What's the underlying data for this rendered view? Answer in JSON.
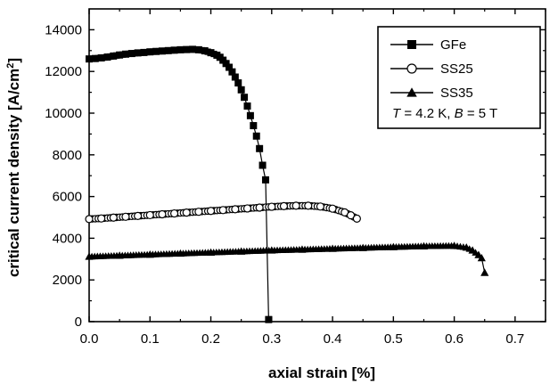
{
  "chart_data": {
    "type": "scatter",
    "xlabel": "axial strain [%]",
    "ylabel": "critical current density [A/cm",
    "ylabel_sup": "2",
    "ylabel_end": "]",
    "xlim": [
      0.0,
      0.75
    ],
    "ylim": [
      0,
      15000
    ],
    "x_ticks": [
      0.0,
      0.1,
      0.2,
      0.3,
      0.4,
      0.5,
      0.6,
      0.7
    ],
    "x_tick_labels": [
      "0.0",
      "0.1",
      "0.2",
      "0.3",
      "0.4",
      "0.5",
      "0.6",
      "0.7"
    ],
    "y_ticks": [
      0,
      2000,
      4000,
      6000,
      8000,
      10000,
      12000,
      14000
    ],
    "y_tick_labels": [
      "0",
      "2000",
      "4000",
      "6000",
      "8000",
      "10000",
      "12000",
      "14000"
    ],
    "grid": false,
    "legend_position": "top-right",
    "legend_condition": {
      "T_sym": "T",
      "T_text": " = 4.2 K, ",
      "B_sym": "B",
      "B_text": " = 5 T"
    },
    "series": [
      {
        "name": "GFe",
        "marker": "square-filled",
        "x": [
          0.0,
          0.01,
          0.02,
          0.03,
          0.04,
          0.05,
          0.06,
          0.07,
          0.08,
          0.09,
          0.1,
          0.11,
          0.12,
          0.13,
          0.14,
          0.15,
          0.16,
          0.17,
          0.18,
          0.19,
          0.2,
          0.21,
          0.215,
          0.22,
          0.225,
          0.23,
          0.235,
          0.24,
          0.245,
          0.25,
          0.255,
          0.26,
          0.265,
          0.27,
          0.275,
          0.28,
          0.285,
          0.29,
          0.295
        ],
        "y": [
          12600,
          12620,
          12650,
          12690,
          12740,
          12790,
          12830,
          12860,
          12890,
          12910,
          12940,
          12960,
          12980,
          13000,
          13020,
          13040,
          13050,
          13060,
          13040,
          12990,
          12900,
          12780,
          12680,
          12540,
          12380,
          12200,
          11980,
          11730,
          11450,
          11120,
          10760,
          10340,
          9880,
          9400,
          8900,
          8300,
          7500,
          6800,
          100
        ]
      },
      {
        "name": "SS25",
        "marker": "circle-open",
        "x": [
          0.0,
          0.02,
          0.04,
          0.06,
          0.08,
          0.1,
          0.12,
          0.14,
          0.16,
          0.18,
          0.2,
          0.22,
          0.24,
          0.26,
          0.28,
          0.3,
          0.32,
          0.34,
          0.36,
          0.38,
          0.4,
          0.42,
          0.43,
          0.44
        ],
        "y": [
          4920,
          4950,
          4990,
          5030,
          5070,
          5110,
          5150,
          5190,
          5230,
          5270,
          5310,
          5350,
          5390,
          5430,
          5470,
          5510,
          5540,
          5560,
          5560,
          5520,
          5420,
          5240,
          5100,
          4940
        ]
      },
      {
        "name": "SS35",
        "marker": "triangle-filled",
        "x": [
          0.0,
          0.05,
          0.1,
          0.15,
          0.2,
          0.25,
          0.3,
          0.35,
          0.4,
          0.45,
          0.5,
          0.55,
          0.6,
          0.62,
          0.63,
          0.64,
          0.645,
          0.65
        ],
        "y": [
          3120,
          3170,
          3220,
          3270,
          3320,
          3370,
          3420,
          3460,
          3500,
          3540,
          3580,
          3620,
          3640,
          3560,
          3420,
          3200,
          3050,
          2350
        ]
      }
    ]
  }
}
